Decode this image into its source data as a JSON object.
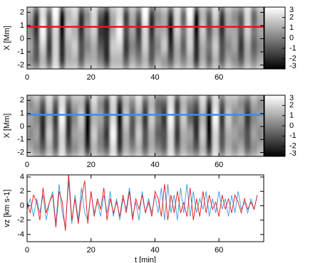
{
  "chart_data": [
    {
      "type": "heatmap",
      "ylabel": "X [Mm]",
      "xlim": [
        0,
        74
      ],
      "ylim": [
        -2.3,
        2.4
      ],
      "xticks": [
        0,
        20,
        40,
        60
      ],
      "yticks": [
        2,
        1,
        0,
        -1,
        -2
      ],
      "zlim": [
        -3,
        3
      ],
      "zticks": [
        3,
        2,
        1,
        0,
        -1,
        -2,
        -3
      ],
      "cut": {
        "value": 0.9,
        "color": "#e8141c"
      },
      "z": [
        [
          0,
          -1,
          1,
          -1,
          2,
          -2,
          1,
          1,
          -1,
          1,
          1,
          0,
          -2,
          1,
          1,
          -1,
          1,
          0,
          1,
          -1,
          1,
          0,
          -1,
          1,
          0,
          1,
          -2,
          1,
          -1,
          1,
          -1,
          1,
          0,
          -1,
          1,
          0,
          1
        ],
        [
          1,
          -1,
          2,
          -2,
          2,
          -2,
          1,
          2,
          -1,
          0,
          1,
          -1,
          -2,
          2,
          2,
          -2,
          0,
          -1,
          2,
          -1,
          0,
          2,
          -2,
          1,
          -1,
          2,
          -2,
          1,
          0,
          2,
          -1,
          0,
          1,
          -2,
          1,
          -1,
          0
        ],
        [
          0,
          -2,
          3,
          -1,
          2,
          -3,
          2,
          1,
          -2,
          1,
          2,
          -2,
          -2,
          1,
          3,
          -1,
          1,
          -2,
          2,
          -2,
          1,
          1,
          -3,
          2,
          0,
          2,
          -3,
          2,
          -1,
          1,
          -2,
          1,
          1,
          -1,
          2,
          0,
          1
        ],
        [
          1,
          -2,
          2,
          -1,
          3,
          -3,
          1,
          2,
          -2,
          0,
          2,
          -1,
          -3,
          1,
          2,
          -2,
          1,
          -1,
          3,
          -2,
          0,
          1,
          -2,
          2,
          -1,
          3,
          -3,
          1,
          -1,
          2,
          -2,
          1,
          0,
          -1,
          2,
          -1,
          1
        ]
      ]
    },
    {
      "type": "heatmap",
      "ylabel": "X [Mm]",
      "xlim": [
        0,
        74
      ],
      "ylim": [
        -2.3,
        2.4
      ],
      "xticks": [
        0,
        20,
        40,
        60
      ],
      "yticks": [
        2,
        1,
        0,
        -1,
        -2
      ],
      "zlim": [
        -3,
        3
      ],
      "zticks": [
        3,
        2,
        1,
        0,
        -1,
        -2,
        -3
      ],
      "cut": {
        "value": 0.9,
        "color": "#3b8fe0"
      },
      "z": [
        [
          1,
          0,
          -1,
          1,
          -1,
          2,
          -1,
          0,
          1,
          -2,
          1,
          0,
          -1,
          2,
          -2,
          1,
          0,
          1,
          -1,
          1,
          0,
          -1,
          2,
          -1,
          1,
          0,
          -1,
          1,
          -2,
          2,
          -1,
          1,
          0,
          1,
          -1,
          0,
          1
        ],
        [
          0,
          1,
          -2,
          2,
          -1,
          2,
          -2,
          1,
          1,
          -3,
          2,
          0,
          -2,
          3,
          -2,
          1,
          -1,
          2,
          -1,
          1,
          -1,
          -1,
          2,
          -2,
          1,
          1,
          -2,
          2,
          -3,
          2,
          -1,
          1,
          1,
          0,
          -1,
          1,
          0
        ],
        [
          1,
          0,
          -2,
          1,
          -2,
          3,
          -2,
          0,
          2,
          -3,
          1,
          1,
          -1,
          2,
          -3,
          2,
          -1,
          1,
          -2,
          2,
          0,
          -2,
          3,
          -1,
          2,
          -1,
          -2,
          1,
          -3,
          3,
          -2,
          2,
          0,
          1,
          -2,
          0,
          1
        ],
        [
          0,
          1,
          -1,
          2,
          -1,
          2,
          -1,
          1,
          1,
          -2,
          2,
          0,
          -2,
          2,
          -2,
          1,
          0,
          2,
          -1,
          1,
          -1,
          -1,
          2,
          -2,
          1,
          0,
          -1,
          2,
          -2,
          2,
          -1,
          1,
          1,
          0,
          -1,
          1,
          0
        ]
      ]
    },
    {
      "type": "line",
      "xlabel": "t [min]",
      "ylabel": "vz [km s-1]",
      "xlim": [
        0,
        74
      ],
      "ylim": [
        -5,
        4.3
      ],
      "xticks": [
        0,
        20,
        40,
        60
      ],
      "yticks": [
        4,
        2,
        0,
        -2,
        -4
      ],
      "x": [
        0,
        1,
        2,
        3,
        4,
        5,
        6,
        7,
        8,
        9,
        10,
        11,
        12,
        13,
        14,
        15,
        16,
        17,
        18,
        19,
        20,
        21,
        22,
        23,
        24,
        25,
        26,
        27,
        28,
        29,
        30,
        31,
        32,
        33,
        34,
        35,
        36,
        37,
        38,
        39,
        40,
        41,
        42,
        43,
        44,
        45,
        46,
        47,
        48,
        49,
        50,
        51,
        52,
        53,
        54,
        55,
        56,
        57,
        58,
        59,
        60,
        61,
        62,
        63,
        64,
        65,
        66,
        67,
        68,
        69,
        70,
        71,
        72
      ],
      "series": [
        {
          "color": "#3b9be0",
          "values": [
            -0.5,
            1,
            -1.5,
            1,
            -1,
            1.5,
            -2,
            0.5,
            2,
            -2.5,
            3,
            -1,
            -3,
            3.5,
            -2.5,
            1.5,
            -2,
            2.5,
            -1,
            -2,
            2,
            -1,
            0.5,
            -1.5,
            1.5,
            -1,
            2,
            -1.5,
            1,
            -2,
            1,
            -0.5,
            2.5,
            -1.5,
            0.5,
            -2,
            2,
            -1,
            1,
            -1,
            1.5,
            -1,
            2.5,
            -2,
            3,
            -1,
            1.5,
            -2,
            2.5,
            -1,
            3,
            -1.5,
            2,
            -1,
            1,
            -0.5,
            2,
            -1.5,
            1,
            -1,
            2,
            -0.5,
            1,
            -1.5,
            1.5,
            -1,
            2,
            -0.5,
            0.5,
            -1,
            1,
            -0.5,
            1.5
          ]
        },
        {
          "color": "#e8141c",
          "values": [
            0.5,
            -1,
            1.5,
            0.5,
            -2,
            2.5,
            -1,
            0.5,
            1.5,
            -3,
            2,
            0.5,
            -3.5,
            4.5,
            -2,
            1,
            -2.5,
            1,
            3.5,
            -2.5,
            2,
            -1.5,
            1,
            -0.5,
            2.5,
            -2,
            1,
            -1,
            0.5,
            -1.5,
            1.5,
            -1,
            2,
            -2,
            1,
            -0.5,
            1.5,
            -1,
            0.5,
            -1.5,
            2,
            1,
            -1.5,
            3,
            -2,
            1.5,
            -1,
            2,
            -1,
            0.5,
            -1.5,
            2.5,
            -2,
            1,
            -1.5,
            2,
            -1,
            1.5,
            -0.5,
            0.5,
            -1.5,
            1.5,
            -0.5,
            1,
            -1,
            1.5,
            0.5,
            -1,
            1,
            -0.5,
            0.5,
            -0.5,
            1.5
          ]
        }
      ]
    }
  ]
}
